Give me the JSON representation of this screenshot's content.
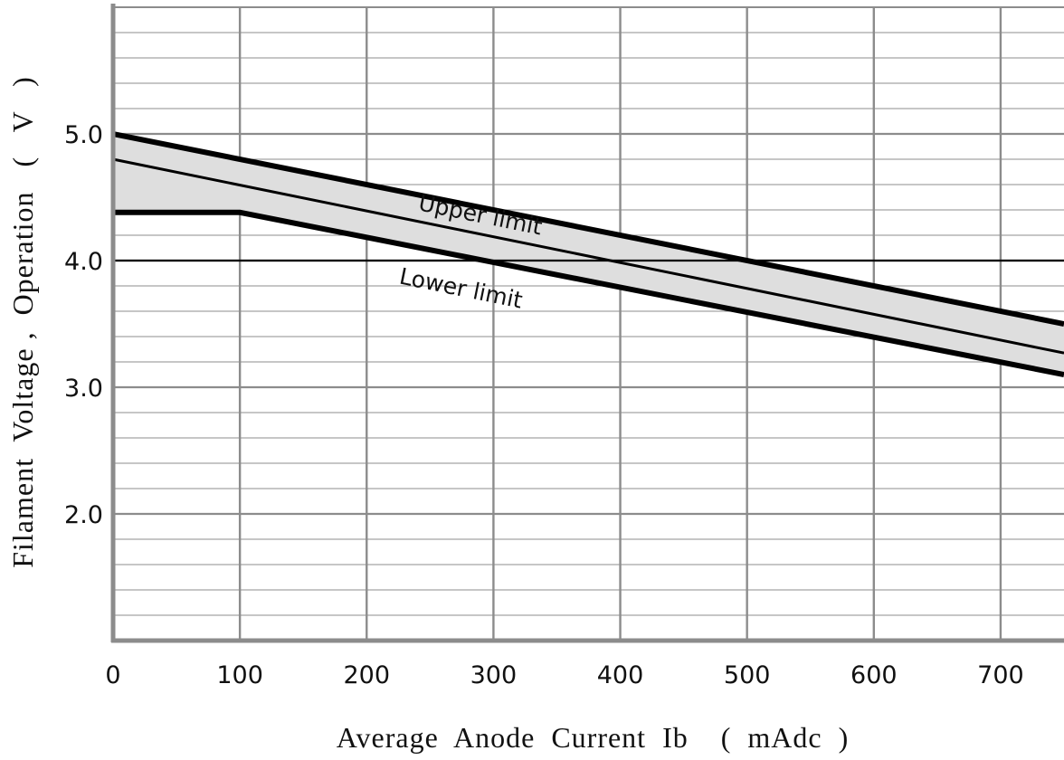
{
  "chart_data": {
    "type": "line",
    "title": "",
    "xlabel": "Average  Anode  Current  Ib    (  mAdc  )",
    "ylabel": "Filament  Voltage ,  Operation   (   V   )",
    "xlim": [
      0,
      750
    ],
    "ylim": [
      1.0,
      6.0
    ],
    "x_ticks": [
      0,
      100,
      200,
      300,
      400,
      500,
      600,
      700
    ],
    "x_tick_labels": [
      "0",
      "100",
      "200",
      "300",
      "400",
      "500",
      "600",
      "700"
    ],
    "y_ticks": [
      2.0,
      3.0,
      4.0,
      5.0
    ],
    "y_tick_labels": [
      "2.0",
      "3.0",
      "4.0",
      "5.0"
    ],
    "grid": true,
    "minor_y_step": 0.2,
    "highlight_y": 4.0,
    "series": [
      {
        "name": "Upper  limit",
        "x": [
          0,
          750
        ],
        "y": [
          5.0,
          3.5
        ],
        "bold": true
      },
      {
        "name": "",
        "x": [
          0,
          750
        ],
        "y": [
          4.8,
          3.27
        ],
        "bold": false
      },
      {
        "name": "Lower  limit",
        "x": [
          0,
          100,
          750
        ],
        "y": [
          4.38,
          4.38,
          3.1
        ],
        "bold": true
      }
    ],
    "band_fill": "#dedede",
    "line_color": "#000000",
    "grid_color": "#8c8c8c",
    "annotations": [
      {
        "text": "Upper  limit",
        "x": 240,
        "y": 4.4,
        "angle": 11.5
      },
      {
        "text": "Lower  limit",
        "x": 225,
        "y": 3.82,
        "angle": 11.5
      }
    ]
  }
}
